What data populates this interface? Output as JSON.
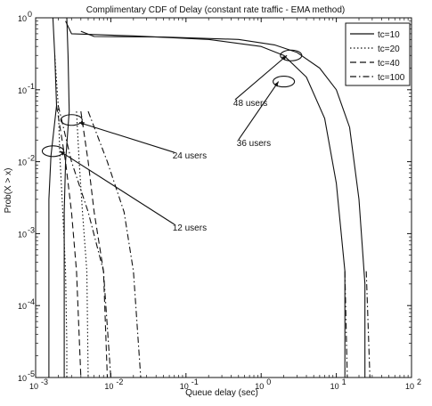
{
  "chart_data": {
    "type": "line",
    "title": "Complimentary CDF of Delay (constant rate traffic - EMA method)",
    "xlabel": "Queue delay (sec)",
    "ylabel": "Prob(X > x)",
    "xscale": "log",
    "yscale": "log",
    "xlim": [
      0.001,
      100
    ],
    "ylim": [
      1e-05,
      1
    ],
    "grid": false,
    "legend_position": "top-right",
    "x_ticks": [
      {
        "v": 0.001,
        "base": "10",
        "exp": "-3"
      },
      {
        "v": 0.01,
        "base": "10",
        "exp": "-2"
      },
      {
        "v": 0.1,
        "base": "10",
        "exp": "-1"
      },
      {
        "v": 1,
        "base": "10",
        "exp": "0"
      },
      {
        "v": 10,
        "base": "10",
        "exp": "1"
      },
      {
        "v": 100,
        "base": "10",
        "exp": "2"
      }
    ],
    "y_ticks": [
      {
        "v": 1e-05,
        "base": "10",
        "exp": "-5"
      },
      {
        "v": 0.0001,
        "base": "10",
        "exp": "-4"
      },
      {
        "v": 0.001,
        "base": "10",
        "exp": "-3"
      },
      {
        "v": 0.01,
        "base": "10",
        "exp": "-2"
      },
      {
        "v": 0.1,
        "base": "10",
        "exp": "-1"
      },
      {
        "v": 1,
        "base": "10",
        "exp": "0"
      }
    ],
    "series": [
      {
        "name": "tc=10",
        "dash": "solid",
        "color": "#111111",
        "groups": [
          {
            "users": 12,
            "points": [
              [
                0.0017,
                1
              ],
              [
                0.0018,
                0.3
              ],
              [
                0.0019,
                0.06
              ],
              [
                0.0016,
                0.012
              ],
              [
                0.0015,
                0.003
              ],
              [
                0.0015,
                0.0003
              ],
              [
                0.0015,
                3e-05
              ],
              [
                0.0015,
                1e-05
              ]
            ]
          },
          {
            "users": 24,
            "points": [
              [
                0.0026,
                1
              ],
              [
                0.0027,
                0.3
              ],
              [
                0.0028,
                0.05
              ],
              [
                0.0025,
                0.01
              ],
              [
                0.0024,
                0.002
              ],
              [
                0.0024,
                0.0002
              ],
              [
                0.0024,
                3e-05
              ],
              [
                0.0024,
                1e-05
              ]
            ]
          },
          {
            "users": 36,
            "points": [
              [
                0.0025,
                0.9
              ],
              [
                0.003,
                0.6
              ],
              [
                0.02,
                0.56
              ],
              [
                0.2,
                0.5
              ],
              [
                1,
                0.4
              ],
              [
                2,
                0.3
              ],
              [
                4,
                0.15
              ],
              [
                7,
                0.04
              ],
              [
                10,
                0.005
              ],
              [
                13,
                0.0003
              ],
              [
                13,
                1e-05
              ]
            ]
          },
          {
            "users": 48,
            "points": [
              [
                0.004,
                0.65
              ],
              [
                0.006,
                0.55
              ],
              [
                0.05,
                0.54
              ],
              [
                0.5,
                0.5
              ],
              [
                1.5,
                0.42
              ],
              [
                3,
                0.33
              ],
              [
                6,
                0.2
              ],
              [
                10,
                0.1
              ],
              [
                15,
                0.03
              ],
              [
                20,
                0.003
              ],
              [
                24,
                0.0002
              ],
              [
                24,
                1e-05
              ]
            ]
          }
        ]
      },
      {
        "name": "tc=20",
        "dash": "dotted",
        "color": "#111111",
        "groups": [
          {
            "users": 12,
            "points": [
              [
                0.0018,
                0.3
              ],
              [
                0.002,
                0.06
              ],
              [
                0.0021,
                0.012
              ],
              [
                0.0023,
                0.002
              ],
              [
                0.0025,
                0.0003
              ],
              [
                0.0026,
                3e-05
              ],
              [
                0.0026,
                1e-05
              ]
            ]
          },
          {
            "users": 24,
            "points": [
              [
                0.0035,
                0.05
              ],
              [
                0.0038,
                0.01
              ],
              [
                0.0042,
                0.002
              ],
              [
                0.0048,
                0.0003
              ],
              [
                0.005,
                1e-05
              ]
            ]
          }
        ]
      },
      {
        "name": "tc=40",
        "dash": "dashed",
        "color": "#111111",
        "groups": [
          {
            "users": 12,
            "points": [
              [
                0.0019,
                0.06
              ],
              [
                0.0025,
                0.01
              ],
              [
                0.003,
                0.002
              ],
              [
                0.0035,
                0.0003
              ],
              [
                0.004,
                1e-05
              ]
            ]
          },
          {
            "users": 24,
            "points": [
              [
                0.004,
                0.05
              ],
              [
                0.005,
                0.01
              ],
              [
                0.006,
                0.002
              ],
              [
                0.008,
                0.0003
              ],
              [
                0.009,
                1e-05
              ]
            ]
          }
        ]
      },
      {
        "name": "tc=100",
        "dash": "dashdot",
        "color": "#111111",
        "groups": [
          {
            "users": 12,
            "points": [
              [
                0.002,
                0.06
              ],
              [
                0.003,
                0.01
              ],
              [
                0.005,
                0.002
              ],
              [
                0.008,
                0.0003
              ],
              [
                0.01,
                1e-05
              ]
            ]
          },
          {
            "users": 24,
            "points": [
              [
                0.005,
                0.05
              ],
              [
                0.009,
                0.01
              ],
              [
                0.015,
                0.002
              ],
              [
                0.02,
                0.0003
              ],
              [
                0.025,
                1e-05
              ]
            ]
          },
          {
            "users": 36,
            "points": [
              [
                13,
                0.0003
              ],
              [
                14,
                1e-05
              ]
            ]
          },
          {
            "users": 48,
            "points": [
              [
                25,
                0.0003
              ],
              [
                28,
                1e-05
              ]
            ]
          }
        ]
      }
    ],
    "annotations": [
      {
        "text": "48 users",
        "label_at": [
          0.45,
          0.065
        ],
        "ellipse_at": [
          2.5,
          0.3
        ],
        "arrow_to": [
          2.2,
          0.3
        ]
      },
      {
        "text": "36 users",
        "label_at": [
          0.5,
          0.018
        ],
        "ellipse_at": [
          2.0,
          0.13
        ],
        "arrow_to": [
          1.7,
          0.13
        ]
      },
      {
        "text": "24 users",
        "label_at": [
          0.07,
          0.012
        ],
        "ellipse_at": [
          0.003,
          0.038
        ],
        "arrow_to": [
          0.0038,
          0.035
        ]
      },
      {
        "text": "12 users",
        "label_at": [
          0.07,
          0.0012
        ],
        "ellipse_at": [
          0.0017,
          0.014
        ],
        "arrow_to": [
          0.0021,
          0.014
        ]
      }
    ]
  }
}
